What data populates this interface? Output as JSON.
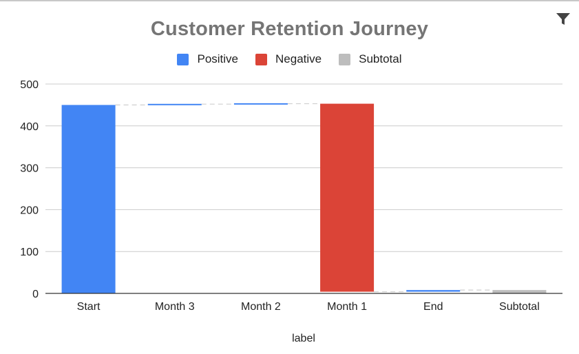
{
  "chart_data": {
    "type": "bar",
    "subtype": "waterfall",
    "title": "Customer Retention Journey",
    "xlabel": "label",
    "ylabel": "",
    "ylim": [
      0,
      500
    ],
    "yticks": [
      0,
      100,
      200,
      300,
      400,
      500
    ],
    "grid": true,
    "legend_position": "top",
    "legend": [
      {
        "name": "Positive",
        "color": "#4285f4"
      },
      {
        "name": "Negative",
        "color": "#db4437"
      },
      {
        "name": "Subtotal",
        "color": "#bdbdbd"
      }
    ],
    "categories": [
      "Start",
      "Month 3",
      "Month 2",
      "Month 1",
      "End",
      "Subtotal"
    ],
    "bars": [
      {
        "label": "Start",
        "kind": "Positive",
        "from": 0,
        "to": 450
      },
      {
        "label": "Month 3",
        "kind": "Positive",
        "from": 450,
        "to": 452
      },
      {
        "label": "Month 2",
        "kind": "Positive",
        "from": 452,
        "to": 453
      },
      {
        "label": "Month 1",
        "kind": "Negative",
        "from": 453,
        "to": 4
      },
      {
        "label": "End",
        "kind": "Positive",
        "from": 4,
        "to": 8
      },
      {
        "label": "Subtotal",
        "kind": "Subtotal",
        "from": 0,
        "to": 8
      }
    ]
  },
  "toolbar": {
    "filter_icon": "filter-icon"
  }
}
